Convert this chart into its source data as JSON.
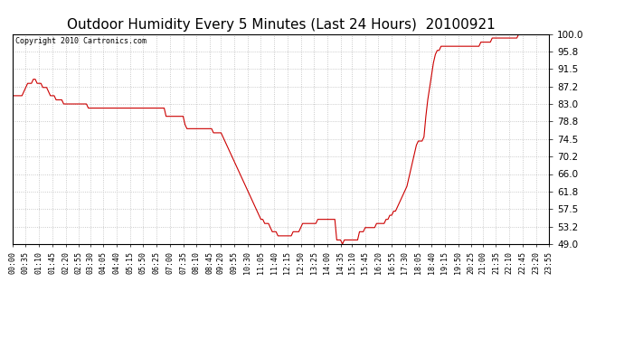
{
  "title": "Outdoor Humidity Every 5 Minutes (Last 24 Hours)  20100921",
  "copyright": "Copyright 2010 Cartronics.com",
  "line_color": "#cc0000",
  "background_color": "#ffffff",
  "grid_color": "#aaaaaa",
  "ylim": [
    49.0,
    100.0
  ],
  "yticks": [
    49.0,
    53.2,
    57.5,
    61.8,
    66.0,
    70.2,
    74.5,
    78.8,
    83.0,
    87.2,
    91.5,
    95.8,
    100.0
  ],
  "ylabel_fontsize": 7.5,
  "xlabel_fontsize": 6,
  "title_fontsize": 11,
  "copyright_fontsize": 6,
  "x_labels": [
    "00:00",
    "00:35",
    "01:10",
    "01:45",
    "02:20",
    "02:55",
    "03:30",
    "04:05",
    "04:40",
    "05:15",
    "05:50",
    "06:25",
    "07:00",
    "07:35",
    "08:10",
    "08:45",
    "09:20",
    "09:55",
    "10:30",
    "11:05",
    "11:40",
    "12:15",
    "12:50",
    "13:25",
    "14:00",
    "14:35",
    "15:10",
    "15:45",
    "16:20",
    "16:55",
    "17:30",
    "18:05",
    "18:40",
    "19:15",
    "19:50",
    "20:25",
    "21:00",
    "21:35",
    "22:10",
    "22:45",
    "23:20",
    "23:55"
  ],
  "y_values": [
    85,
    85,
    85,
    85,
    85,
    85,
    86,
    87,
    88,
    88,
    88,
    89,
    89,
    88,
    88,
    88,
    87,
    87,
    87,
    86,
    85,
    85,
    85,
    84,
    84,
    84,
    84,
    83,
    83,
    83,
    83,
    83,
    83,
    83,
    83,
    83,
    83,
    83,
    83,
    83,
    82,
    82,
    82,
    82,
    82,
    82,
    82,
    82,
    82,
    82,
    82,
    82,
    82,
    82,
    82,
    82,
    82,
    82,
    82,
    82,
    82,
    82,
    82,
    82,
    82,
    82,
    82,
    82,
    82,
    82,
    82,
    82,
    82,
    82,
    82,
    82,
    82,
    82,
    82,
    82,
    82,
    80,
    80,
    80,
    80,
    80,
    80,
    80,
    80,
    80,
    80,
    78,
    77,
    77,
    77,
    77,
    77,
    77,
    77,
    77,
    77,
    77,
    77,
    77,
    77,
    77,
    76,
    76,
    76,
    76,
    76,
    75,
    74,
    73,
    72,
    71,
    70,
    69,
    68,
    67,
    66,
    65,
    64,
    63,
    62,
    61,
    60,
    59,
    58,
    57,
    56,
    55,
    55,
    54,
    54,
    54,
    53,
    52,
    52,
    52,
    51,
    51,
    51,
    51,
    51,
    51,
    51,
    51,
    52,
    52,
    52,
    52,
    53,
    54,
    54,
    54,
    54,
    54,
    54,
    54,
    54,
    55,
    55,
    55,
    55,
    55,
    55,
    55,
    55,
    55,
    55,
    50,
    50,
    50,
    49,
    50,
    50,
    50,
    50,
    50,
    50,
    50,
    50,
    52,
    52,
    52,
    53,
    53,
    53,
    53,
    53,
    53,
    54,
    54,
    54,
    54,
    54,
    55,
    55,
    56,
    56,
    57,
    57,
    58,
    59,
    60,
    61,
    62,
    63,
    65,
    67,
    69,
    71,
    73,
    74,
    74,
    74,
    75,
    80,
    84,
    87,
    90,
    93,
    95,
    96,
    96,
    97,
    97,
    97,
    97,
    97,
    97,
    97,
    97,
    97,
    97,
    97,
    97,
    97,
    97,
    97,
    97,
    97,
    97,
    97,
    97,
    97,
    98,
    98,
    98,
    98,
    98,
    98,
    99,
    99,
    99,
    99,
    99,
    99,
    99,
    99,
    99,
    99,
    99,
    99,
    99,
    99,
    100,
    100,
    100,
    100,
    100,
    100,
    100,
    100,
    100,
    100,
    100,
    100,
    100,
    100,
    100,
    100,
    100
  ]
}
